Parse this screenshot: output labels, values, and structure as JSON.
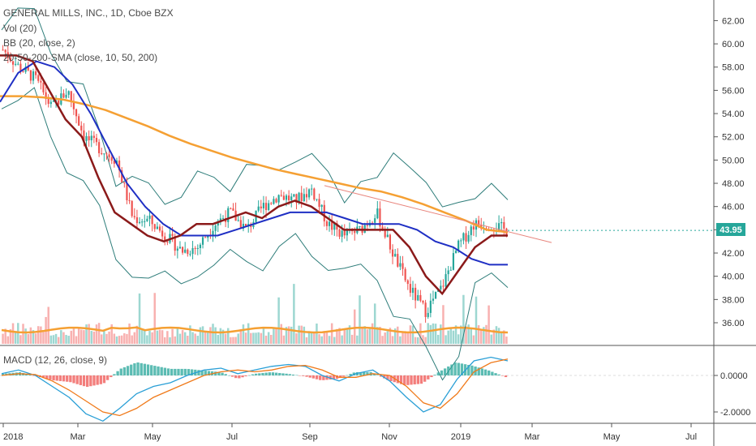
{
  "legend": {
    "title": "GENERAL MILLS, INC., 1D, Cboe BZX",
    "vol": "Vol (20)",
    "bb": "BB (20, close, 2)",
    "sma": "20-50-200-SMA (close, 10, 50, 200)",
    "macd": "MACD (12, 26, close, 9)"
  },
  "last_price": "43.95",
  "colors": {
    "up": "#26a69a",
    "down": "#ef5350",
    "bb": "#2e7d7a",
    "sma10": "#8b1a1a",
    "sma50": "#1f2fc4",
    "sma200": "#f5a033",
    "trend": "#e8857d",
    "macd": "#2a9fd6",
    "signal": "#f07a1a"
  },
  "chart_data": [
    {
      "type": "candlestick",
      "title": "GENERAL MILLS, INC., 1D, Cboe BZX",
      "x_ticks": [
        "2018",
        "Mar",
        "May",
        "Jul",
        "Sep",
        "Nov",
        "2019",
        "Mar",
        "May",
        "Jul"
      ],
      "y_ticks": [
        "36.00",
        "38.00",
        "40.00",
        "42.00",
        "44.00",
        "46.00",
        "48.00",
        "50.00",
        "52.00",
        "54.00",
        "56.00",
        "58.00",
        "60.00",
        "62.00"
      ],
      "ylim": [
        34.5,
        62.5
      ],
      "last": 43.95,
      "close_series": [
        {
          "x": "2018-01",
          "y": 59.5
        },
        {
          "x": "2018-01-20",
          "y": 58.0
        },
        {
          "x": "2018-02-01",
          "y": 57.0
        },
        {
          "x": "2018-02-10",
          "y": 54.5
        },
        {
          "x": "2018-02-20",
          "y": 56.0
        },
        {
          "x": "2018-03-01",
          "y": 52.0
        },
        {
          "x": "2018-03-10",
          "y": 51.0
        },
        {
          "x": "2018-03-20",
          "y": 50.0
        },
        {
          "x": "2018-04-01",
          "y": 45.0
        },
        {
          "x": "2018-04-15",
          "y": 44.8
        },
        {
          "x": "2018-05-01",
          "y": 43.5
        },
        {
          "x": "2018-05-15",
          "y": 42.2
        },
        {
          "x": "2018-06-01",
          "y": 42.5
        },
        {
          "x": "2018-06-15",
          "y": 44.5
        },
        {
          "x": "2018-07-01",
          "y": 45.5
        },
        {
          "x": "2018-07-15",
          "y": 44.0
        },
        {
          "x": "2018-08-01",
          "y": 46.0
        },
        {
          "x": "2018-08-15",
          "y": 47.0
        },
        {
          "x": "2018-09-01",
          "y": 46.5
        },
        {
          "x": "2018-09-15",
          "y": 47.5
        },
        {
          "x": "2018-10-01",
          "y": 44.5
        },
        {
          "x": "2018-10-15",
          "y": 43.5
        },
        {
          "x": "2018-11-01",
          "y": 44.0
        },
        {
          "x": "2018-11-15",
          "y": 45.5
        },
        {
          "x": "2018-12-01",
          "y": 42.0
        },
        {
          "x": "2018-12-15",
          "y": 39.0
        },
        {
          "x": "2018-12-25",
          "y": 37.0
        },
        {
          "x": "2019-01-01",
          "y": 39.0
        },
        {
          "x": "2019-01-15",
          "y": 42.5
        },
        {
          "x": "2019-02-01",
          "y": 44.5
        },
        {
          "x": "2019-02-15",
          "y": 44.5
        },
        {
          "x": "2019-02-25",
          "y": 43.95
        }
      ],
      "sma10": [
        59.0,
        59.0,
        58.5,
        56.0,
        53.5,
        52.0,
        48.5,
        45.5,
        44.5,
        43.5,
        43.0,
        43.5,
        44.5,
        44.5,
        45.0,
        45.5,
        45.0,
        46.0,
        46.5,
        46.0,
        45.0,
        44.0,
        44.0,
        44.0,
        44.0,
        42.5,
        40.0,
        38.5,
        40.5,
        42.5,
        43.5,
        43.5
      ],
      "sma50": [
        55.0,
        57.5,
        58.5,
        58.0,
        56.5,
        54.0,
        51.0,
        48.0,
        46.0,
        44.5,
        43.5,
        43.5,
        43.5,
        44.0,
        44.5,
        45.0,
        45.5,
        45.5,
        45.5,
        45.0,
        44.5,
        44.5,
        44.5,
        44.0,
        43.0,
        42.5,
        41.5,
        41.0,
        41.0
      ],
      "sma200": [
        55.5,
        55.5,
        55.4,
        55.2,
        54.8,
        54.3,
        53.6,
        52.9,
        52.1,
        51.4,
        50.8,
        50.2,
        49.7,
        49.2,
        48.8,
        48.4,
        48.0,
        47.6,
        47.3,
        46.8,
        46.2,
        45.5,
        44.8,
        44.0,
        43.8
      ],
      "trendline": [
        {
          "x": "2018-09-25",
          "y": 47.8
        },
        {
          "x": "2019-03-20",
          "y": 42.9
        }
      ],
      "volume_note": "Vol (20)"
    },
    {
      "type": "line",
      "title": "MACD (12, 26, close, 9)",
      "y_ticks": [
        "-2.0000",
        "0.0000"
      ],
      "ylim": [
        -2.7,
        1.5
      ],
      "macd": [
        0.1,
        0.3,
        0.0,
        -0.6,
        -1.2,
        -2.1,
        -2.5,
        -1.8,
        -1.0,
        -0.6,
        -0.4,
        0.0,
        0.3,
        0.4,
        0.1,
        0.3,
        0.5,
        0.6,
        0.5,
        0.0,
        -0.3,
        0.1,
        0.3,
        -0.3,
        -1.2,
        -2.0,
        -1.6,
        -0.2,
        0.8,
        1.0,
        0.8
      ],
      "signal": [
        0.0,
        0.1,
        0.05,
        -0.3,
        -0.8,
        -1.4,
        -2.0,
        -2.2,
        -1.8,
        -1.2,
        -0.8,
        -0.4,
        0.0,
        0.2,
        0.3,
        0.2,
        0.3,
        0.5,
        0.55,
        0.3,
        -0.1,
        -0.1,
        0.1,
        0.0,
        -0.6,
        -1.5,
        -1.8,
        -1.0,
        0.2,
        0.7,
        0.9
      ]
    }
  ]
}
